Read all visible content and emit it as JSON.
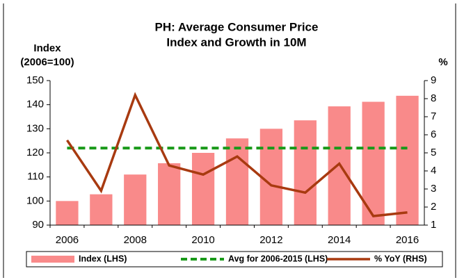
{
  "chart_data": {
    "type": "bar-line",
    "title_lines": [
      "PH: Average Consumer Price",
      "Index and Growth in 10M"
    ],
    "y_label_lines": [
      "Index",
      "(2006=100)"
    ],
    "y2_label": "%",
    "categories": [
      "2006",
      null,
      "2008",
      null,
      "2010",
      null,
      "2012",
      null,
      "2014",
      null,
      "2016"
    ],
    "series": [
      {
        "name": "Index (LHS)",
        "type": "bar",
        "color": "#f98a8a",
        "values": [
          100,
          102.8,
          111,
          115.7,
          120,
          126,
          130,
          133.5,
          139.3,
          141.2,
          143.7
        ]
      },
      {
        "name": "Avg for 2006-2015 (LHS)",
        "type": "dashed-line",
        "color": "#1a9a1a",
        "values": [
          122,
          122,
          122,
          122,
          122,
          122,
          122,
          122,
          122,
          122,
          122
        ]
      },
      {
        "name": "% YoY (RHS)",
        "type": "line",
        "axis": "y2",
        "color": "#a83a10",
        "values": [
          5.7,
          2.9,
          8.2,
          4.3,
          3.8,
          4.8,
          3.2,
          2.8,
          4.4,
          1.5,
          1.7
        ]
      }
    ],
    "ylim": [
      90,
      150
    ],
    "yticks": [
      90,
      100,
      110,
      120,
      130,
      140,
      150
    ],
    "y2lim": [
      1,
      9
    ],
    "y2ticks": [
      1,
      2,
      3,
      4,
      5,
      6,
      7,
      8,
      9
    ]
  }
}
